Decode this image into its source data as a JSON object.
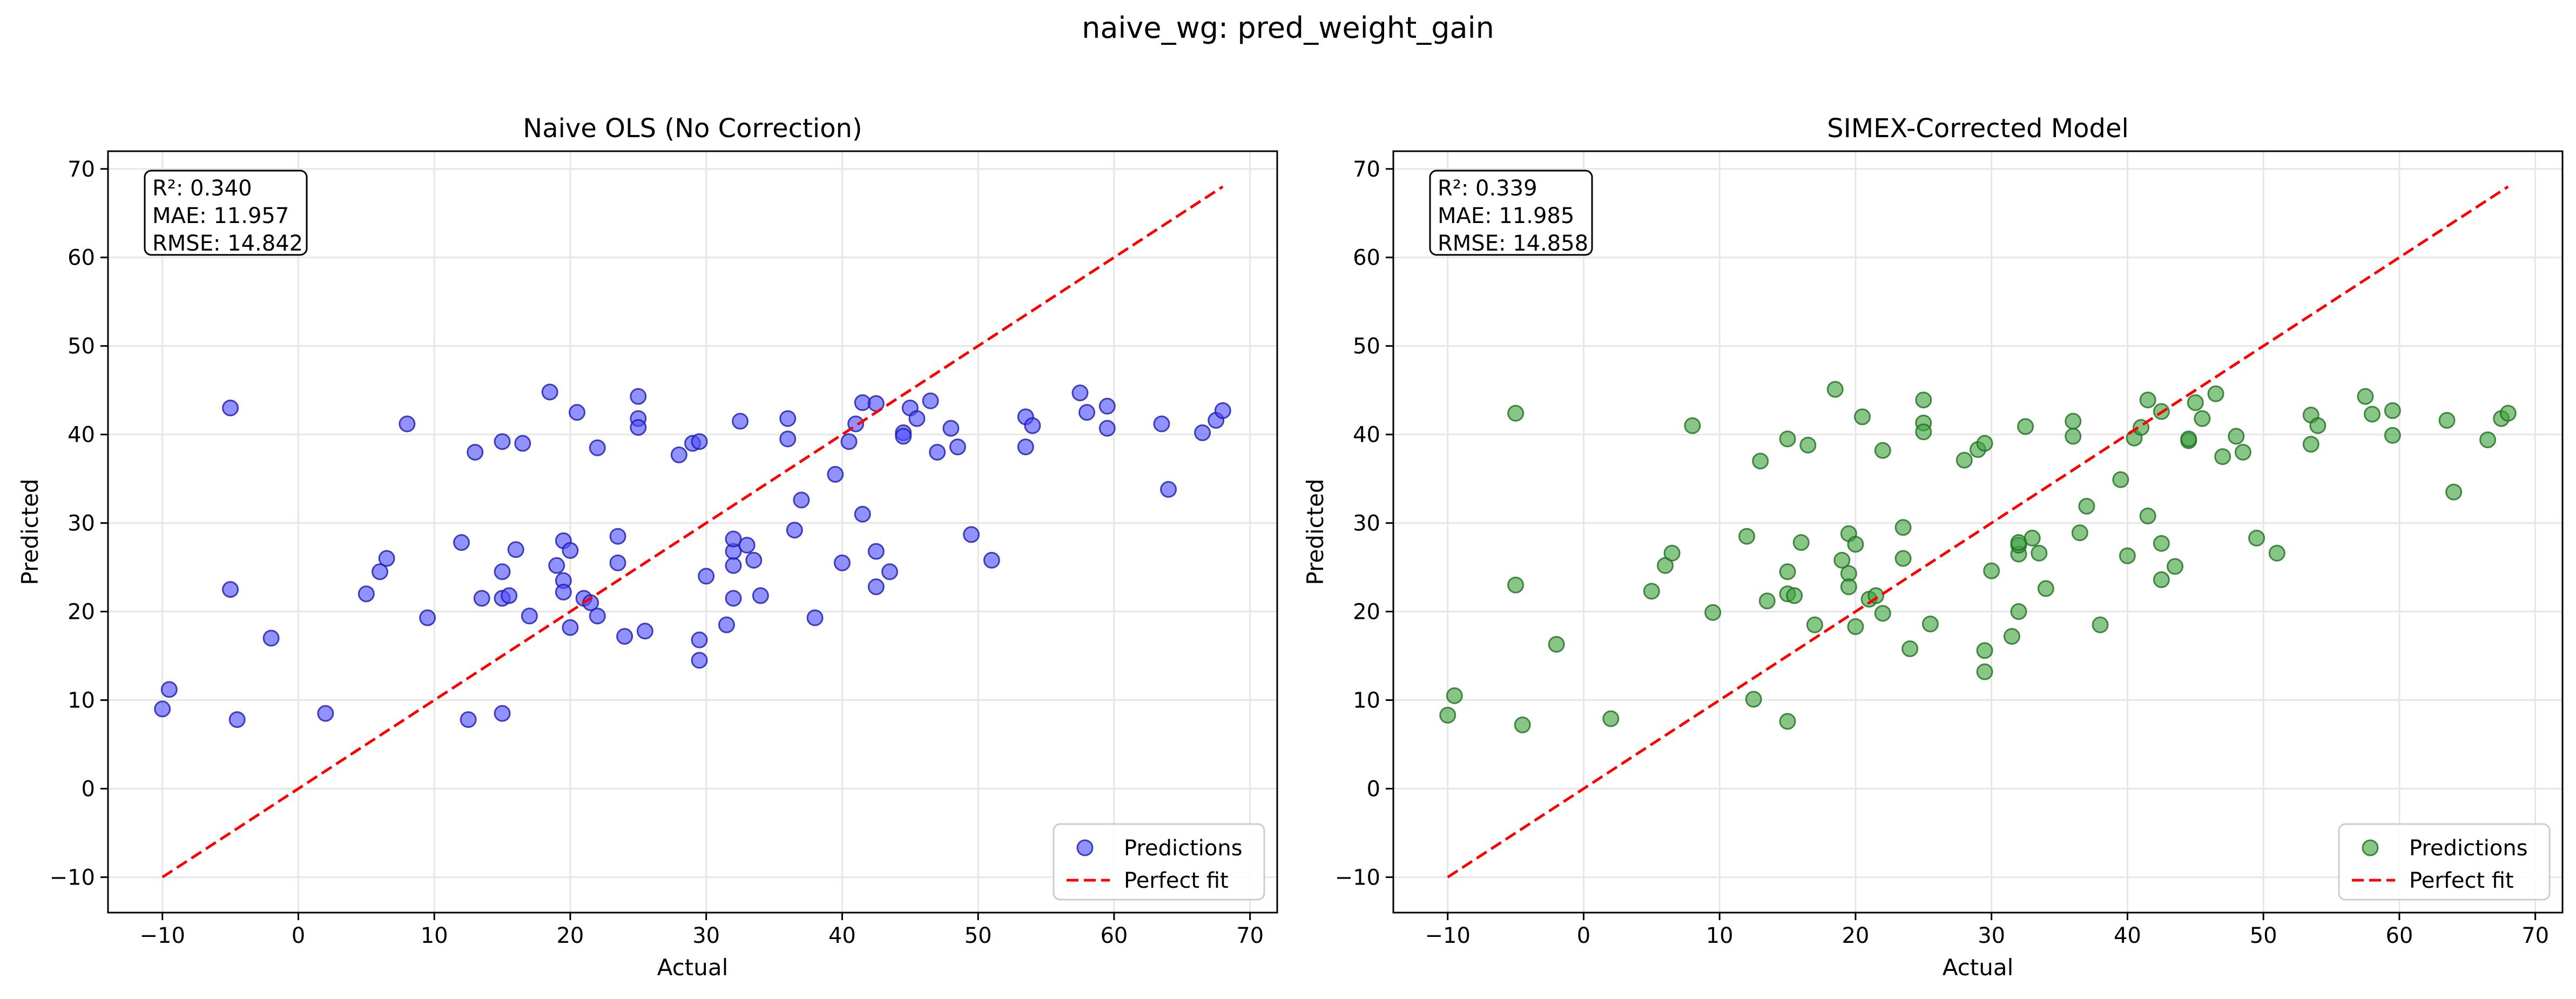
{
  "suptitle": "naive_wg: pred_weight_gain",
  "colors": {
    "naive": "#4d4dff",
    "simex": "#3fa33f",
    "line": "#ff0000"
  },
  "chart_data": [
    {
      "type": "scatter",
      "title": "Naive OLS (No Correction)",
      "xlabel": "Actual",
      "ylabel": "Predicted",
      "xlim": [
        -14,
        72
      ],
      "ylim": [
        -14,
        72
      ],
      "xticks": [
        -10,
        0,
        10,
        20,
        30,
        40,
        50,
        60,
        70
      ],
      "yticks": [
        -10,
        0,
        10,
        20,
        30,
        40,
        50,
        60,
        70
      ],
      "grid": true,
      "legend_position": "lower-right",
      "legend": [
        "Predictions",
        "Perfect fit"
      ],
      "stats": [
        "R²: 0.340",
        "MAE: 11.957",
        "RMSE: 14.842"
      ],
      "reference_line": {
        "name": "Perfect fit",
        "x": [
          -10,
          68
        ],
        "y": [
          -10,
          68
        ]
      },
      "series": [
        {
          "name": "Predictions",
          "x": [
            -10,
            -9.5,
            -5,
            -5,
            -4.5,
            -2,
            2,
            5,
            6,
            6.5,
            8,
            9.5,
            12,
            12.5,
            13,
            13.5,
            15,
            15,
            15,
            15,
            15.5,
            16,
            16.5,
            17,
            18.5,
            19,
            19.5,
            19.5,
            19.5,
            20,
            20,
            20.5,
            21,
            21.5,
            22,
            22,
            23.5,
            23.5,
            24,
            25,
            25,
            25,
            25.5,
            28,
            29,
            29.5,
            29.5,
            29.5,
            30,
            31.5,
            32,
            32,
            32,
            32,
            32.5,
            33,
            33.5,
            34,
            36,
            36,
            36.5,
            37,
            38,
            39.5,
            40,
            40.5,
            41,
            41.5,
            41.5,
            42.5,
            42.5,
            42.5,
            43.5,
            44.5,
            44.5,
            45,
            45.5,
            46.5,
            47,
            48,
            48.5,
            49.5,
            51,
            53.5,
            53.5,
            54,
            57.5,
            58,
            59.5,
            59.5,
            63.5,
            64,
            66.5,
            67.5,
            68
          ],
          "y": [
            9,
            11.2,
            43,
            22.5,
            7.8,
            17,
            8.5,
            22,
            24.5,
            26,
            41.2,
            19.3,
            27.8,
            7.8,
            38,
            21.5,
            39.2,
            24.5,
            21.5,
            8.5,
            21.8,
            27,
            39,
            19.5,
            44.8,
            25.2,
            28,
            23.5,
            22.2,
            18.2,
            26.9,
            42.5,
            21.5,
            21,
            19.5,
            38.5,
            25.5,
            28.5,
            17.2,
            44.3,
            41.8,
            40.8,
            17.8,
            37.7,
            39,
            39.2,
            16.8,
            14.5,
            24,
            18.5,
            21.5,
            25.2,
            26.8,
            28.2,
            41.5,
            27.5,
            25.8,
            21.8,
            41.8,
            39.5,
            29.2,
            32.6,
            19.3,
            35.5,
            25.5,
            39.2,
            41.2,
            43.6,
            31,
            22.8,
            26.8,
            43.5,
            24.5,
            40.2,
            39.8,
            43,
            41.8,
            43.8,
            38,
            40.7,
            38.6,
            28.7,
            25.8,
            42,
            38.6,
            41,
            44.7,
            42.5,
            43.2,
            40.7,
            41.2,
            33.8,
            40.2,
            41.6,
            42.7
          ]
        }
      ]
    },
    {
      "type": "scatter",
      "title": "SIMEX-Corrected Model",
      "xlabel": "Actual",
      "ylabel": "Predicted",
      "xlim": [
        -14,
        72
      ],
      "ylim": [
        -14,
        72
      ],
      "xticks": [
        -10,
        0,
        10,
        20,
        30,
        40,
        50,
        60,
        70
      ],
      "yticks": [
        -10,
        0,
        10,
        20,
        30,
        40,
        50,
        60,
        70
      ],
      "grid": true,
      "legend_position": "lower-right",
      "legend": [
        "Predictions",
        "Perfect fit"
      ],
      "stats": [
        "R²: 0.339",
        "MAE: 11.985",
        "RMSE: 14.858"
      ],
      "reference_line": {
        "name": "Perfect fit",
        "x": [
          -10,
          68
        ],
        "y": [
          -10,
          68
        ]
      },
      "series": [
        {
          "name": "Predictions",
          "x": [
            -10,
            -9.5,
            -5,
            -5,
            -4.5,
            -2,
            2,
            5,
            6,
            6.5,
            8,
            9.5,
            12,
            12.5,
            13,
            13.5,
            15,
            15,
            15,
            15,
            15.5,
            16,
            16.5,
            17,
            18.5,
            19,
            19.5,
            19.5,
            19.5,
            20,
            20,
            20.5,
            21,
            21.5,
            22,
            22,
            23.5,
            23.5,
            24,
            25,
            25,
            25,
            25.5,
            28,
            29,
            29.5,
            29.5,
            29.5,
            30,
            31.5,
            32,
            32,
            32,
            32,
            32.5,
            33,
            33.5,
            34,
            36,
            36,
            36.5,
            37,
            38,
            39.5,
            40,
            40.5,
            41,
            41.5,
            41.5,
            42.5,
            42.5,
            42.5,
            43.5,
            44.5,
            44.5,
            45,
            45.5,
            46.5,
            47,
            48,
            48.5,
            49.5,
            51,
            53.5,
            53.5,
            54,
            57.5,
            58,
            59.5,
            59.5,
            63.5,
            64,
            66.5,
            67.5,
            68
          ],
          "y": [
            8.3,
            10.5,
            42.4,
            23,
            7.2,
            16.3,
            7.9,
            22.3,
            25.2,
            26.6,
            41,
            19.9,
            28.5,
            10.1,
            37,
            21.2,
            39.5,
            24.5,
            22,
            7.6,
            21.8,
            27.8,
            38.8,
            18.5,
            45.1,
            25.8,
            28.8,
            24.3,
            22.8,
            18.3,
            27.6,
            42,
            21.4,
            21.8,
            19.8,
            38.2,
            26,
            29.5,
            15.8,
            43.9,
            41.3,
            40.3,
            18.6,
            37.1,
            38.3,
            39,
            15.6,
            13.2,
            24.6,
            17.2,
            20,
            26.5,
            27.5,
            27.8,
            40.9,
            28.3,
            26.6,
            22.6,
            41.5,
            39.8,
            28.9,
            31.9,
            18.5,
            34.9,
            26.3,
            39.6,
            40.8,
            43.9,
            30.8,
            23.6,
            27.7,
            42.6,
            25.1,
            39.3,
            39.5,
            43.6,
            41.8,
            44.6,
            37.5,
            39.8,
            38,
            28.3,
            26.6,
            42.2,
            38.9,
            41,
            44.3,
            42.3,
            42.7,
            39.9,
            41.6,
            33.5,
            39.4,
            41.8,
            42.4
          ]
        }
      ]
    }
  ]
}
